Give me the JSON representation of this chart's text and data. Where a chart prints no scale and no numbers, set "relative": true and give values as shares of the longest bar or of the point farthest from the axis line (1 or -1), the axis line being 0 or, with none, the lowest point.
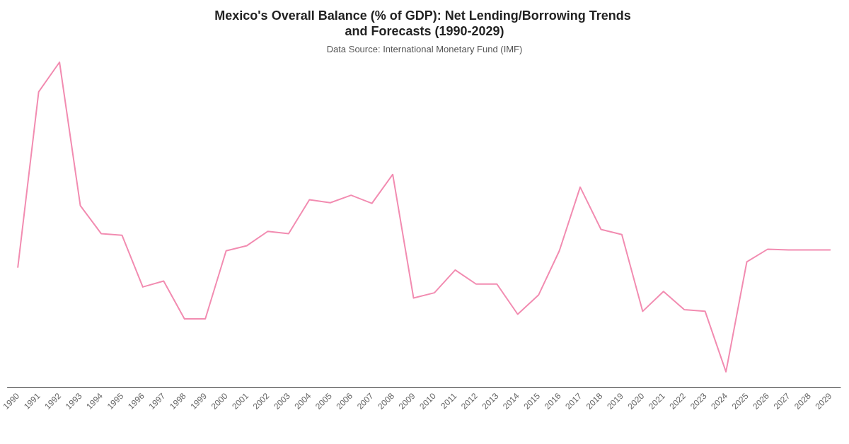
{
  "chart_data": {
    "type": "line",
    "relative": true,
    "title": "Mexico's Overall Balance (% of GDP): Net Lending/Borrowing Trends and Forecasts (1990-2029)",
    "subtitle": "Data Source: International Monetary Fund (IMF)",
    "categories": [
      "1990",
      "1991",
      "1992",
      "1993",
      "1994",
      "1995",
      "1996",
      "1997",
      "1998",
      "1999",
      "2000",
      "2001",
      "2002",
      "2003",
      "2004",
      "2005",
      "2006",
      "2007",
      "2008",
      "2009",
      "2010",
      "2011",
      "2012",
      "2013",
      "2014",
      "2015",
      "2016",
      "2017",
      "2018",
      "2019",
      "2020",
      "2021",
      "2022",
      "2023",
      "2024",
      "2025",
      "2026",
      "2027",
      "2028",
      "2029"
    ],
    "series": [
      {
        "color": "#f28cb1",
        "values": [
          0.37,
          0.909,
          1,
          0.559,
          0.473,
          0.468,
          0.309,
          0.327,
          0.211,
          0.211,
          0.42,
          0.436,
          0.48,
          0.473,
          0.577,
          0.568,
          0.591,
          0.566,
          0.655,
          0.275,
          0.291,
          0.361,
          0.318,
          0.318,
          0.225,
          0.284,
          0.42,
          0.616,
          0.486,
          0.47,
          0.234,
          0.295,
          0.239,
          0.234,
          0.048,
          0.386,
          0.425,
          0.423,
          0.423,
          0.423
        ]
      }
    ],
    "marker": "none",
    "line_style": "solid",
    "grid": false
  }
}
